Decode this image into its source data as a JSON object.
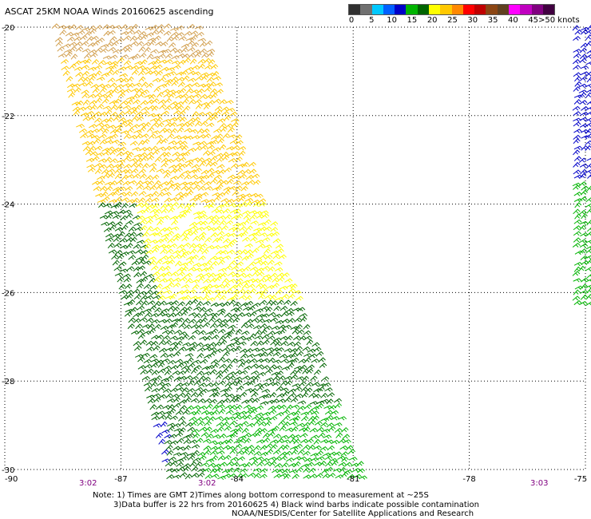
{
  "header": {
    "title": "ASCAT 25KM NOAA Winds 20160625 ascending"
  },
  "legend": {
    "colors": [
      "#303030",
      "#707070",
      "#00c8ff",
      "#0060ff",
      "#0000c8",
      "#00b400",
      "#006400",
      "#ffff00",
      "#ffc800",
      "#ff8800",
      "#ff0000",
      "#c00000",
      "#8b4513",
      "#604020",
      "#ff00ff",
      "#c000c0",
      "#800080",
      "#400040"
    ],
    "labels": [
      "0",
      "5",
      "10",
      "15",
      "20",
      "25",
      "30",
      "35",
      "40",
      "45",
      ">50 knots"
    ]
  },
  "axes": {
    "y_labels": [
      "-20",
      "-22",
      "-24",
      "-26",
      "-28",
      "-30"
    ],
    "x_labels": [
      "-90",
      "-87",
      "-84",
      "-81",
      "-78",
      "-75"
    ]
  },
  "pass_times": [
    "3:02",
    "3:02",
    "3:03"
  ],
  "notes": {
    "line1": "Note: 1) Times are GMT 2)Times along bottom correspond to measurement at ~25S",
    "line2": "3)Data buffer is 22 hrs from 20160625 4) Black wind barbs indicate possible contamination",
    "line3": "NOAA/NESDIS/Center for Satellite Applications and Research"
  },
  "swaths": [
    {
      "name": "west-swath",
      "corners_deg": [
        [
          -88.8,
          -20.0
        ],
        [
          -85.0,
          -20.0
        ],
        [
          -80.8,
          -30.2
        ],
        [
          -85.8,
          -30.2
        ]
      ],
      "color_bands": [
        {
          "from_lat": -20.0,
          "to_lat": -20.7,
          "color": "#d2a050"
        },
        {
          "from_lat": -20.7,
          "to_lat": -24.0,
          "color": "#ffc800"
        },
        {
          "from_lat": -24.0,
          "to_lat": -26.2,
          "color": "#ffff00"
        },
        {
          "from_lat": -26.2,
          "to_lat": -28.5,
          "color": "#006400"
        },
        {
          "from_lat": -28.5,
          "to_lat": -30.2,
          "color": "#00b400"
        }
      ],
      "west_edge_color": "#006400",
      "west_edge_from_lat": -24.0,
      "blue_patch": {
        "lon": [
          -87.3,
          -85.9
        ],
        "lat": [
          -29.0,
          -30.2
        ],
        "color": "#0000c8"
      }
    },
    {
      "name": "east-swath",
      "corners_deg": [
        [
          -75.3,
          -20.0
        ],
        [
          -74.9,
          -20.0
        ],
        [
          -74.9,
          -26.4
        ],
        [
          -75.3,
          -26.4
        ]
      ],
      "color_bands": [
        {
          "from_lat": -20.0,
          "to_lat": -23.5,
          "color": "#0000c8"
        },
        {
          "from_lat": -23.5,
          "to_lat": -26.4,
          "color": "#00b400"
        }
      ]
    }
  ]
}
